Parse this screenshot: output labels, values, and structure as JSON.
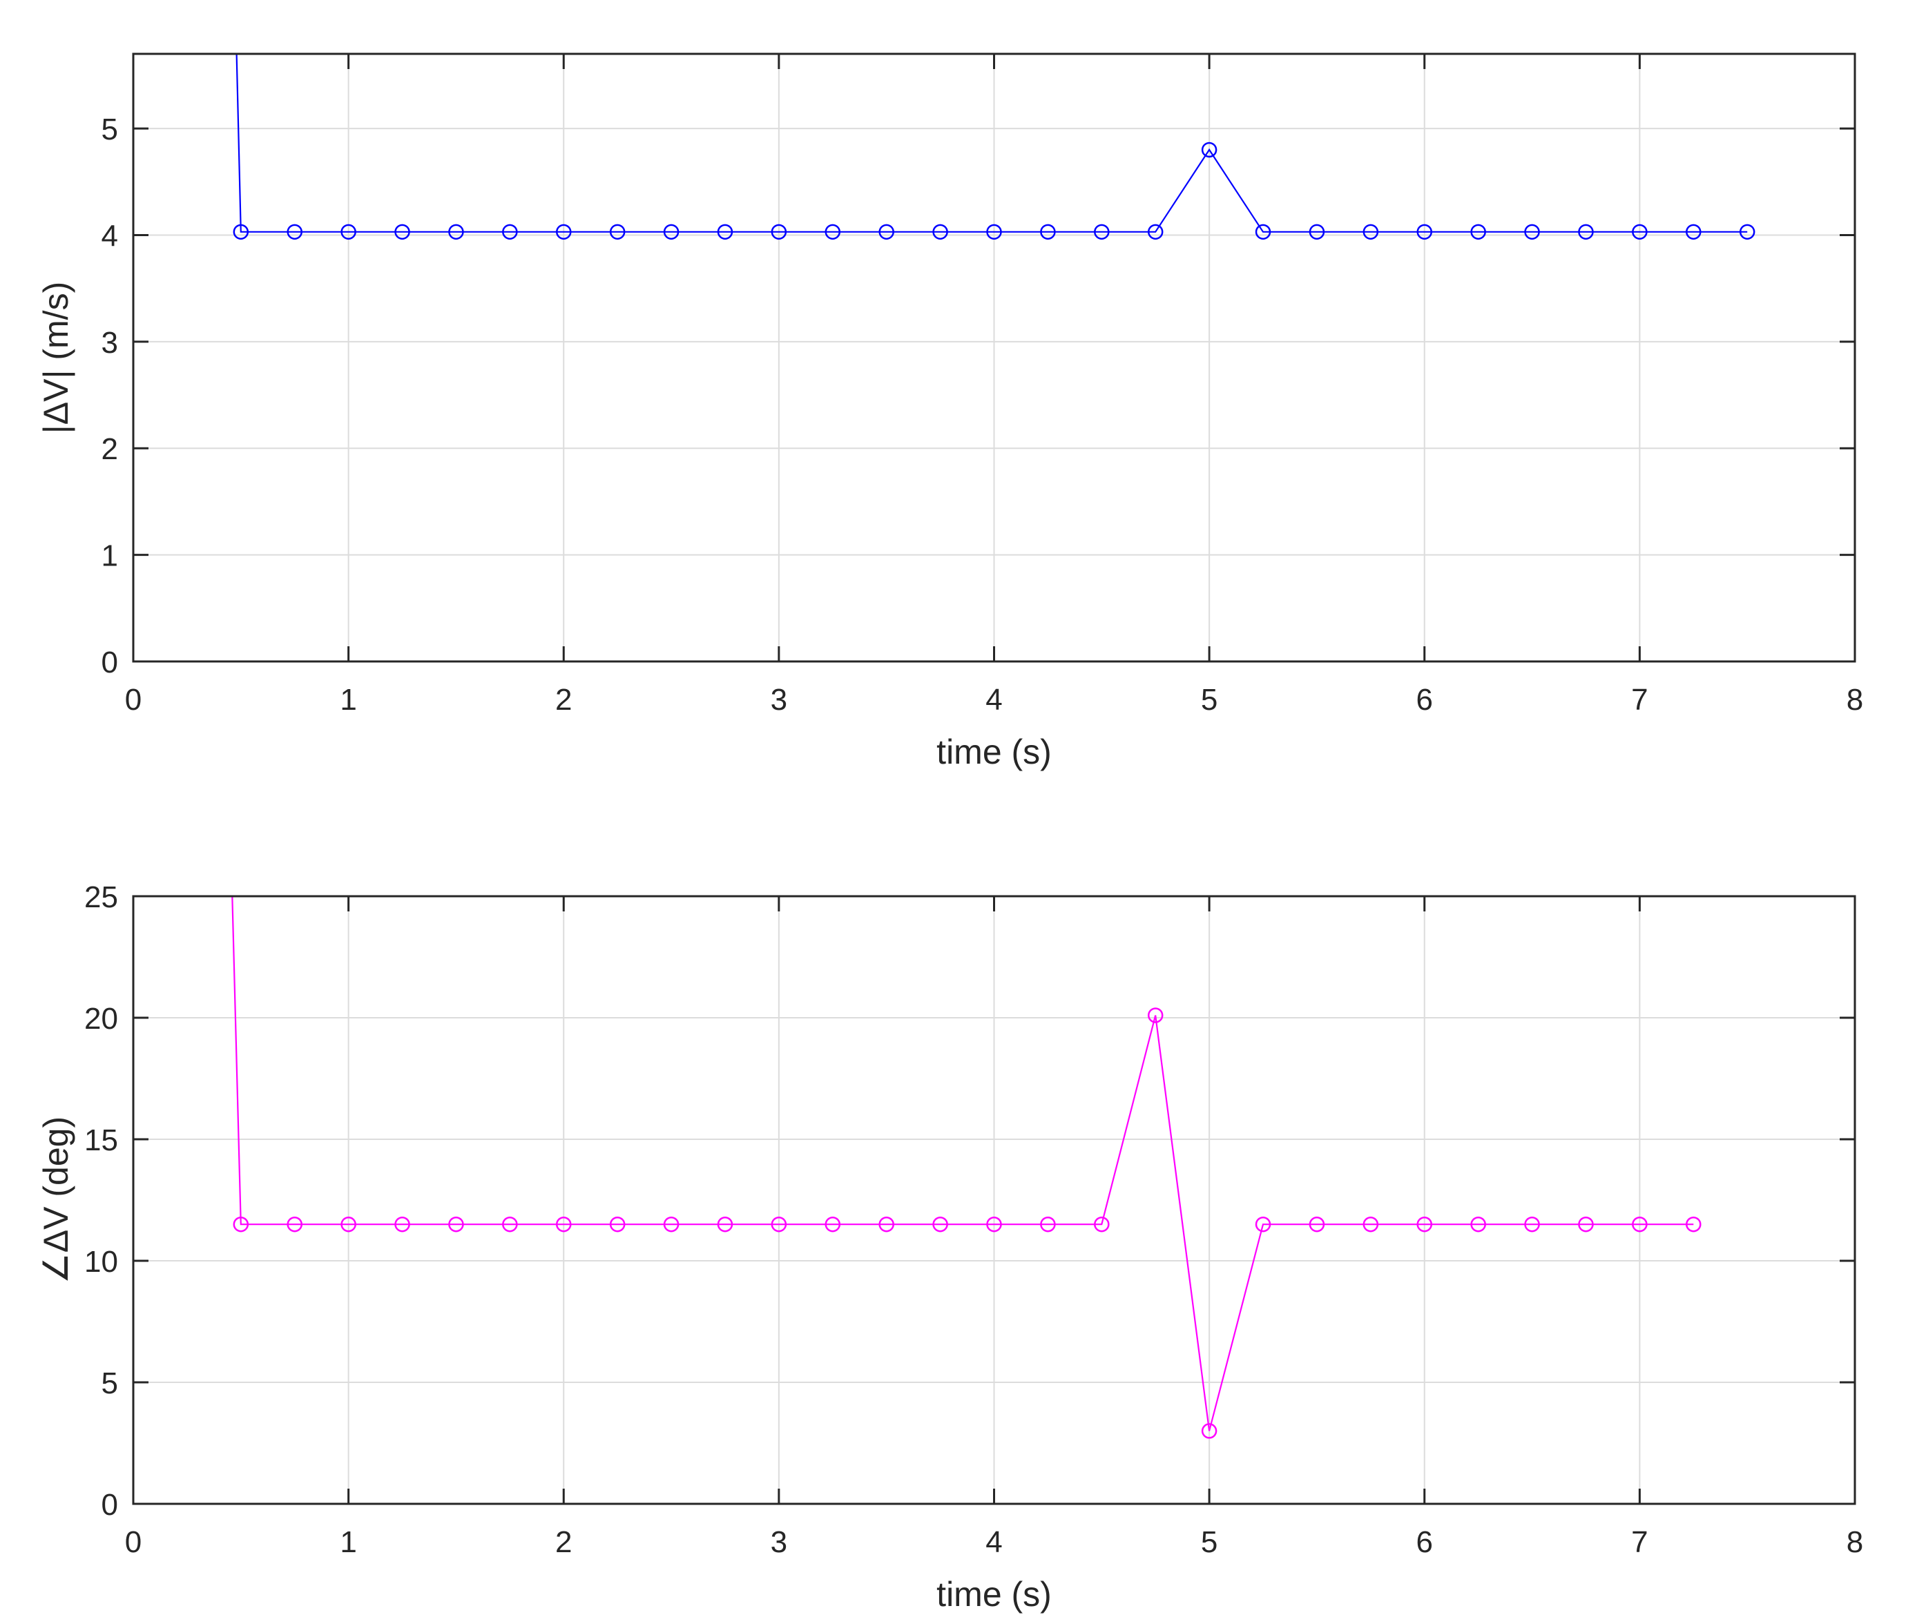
{
  "chart_data": [
    {
      "type": "line",
      "xlabel": "time (s)",
      "ylabel": "|ΔV| (m/s)",
      "xlim": [
        0,
        8
      ],
      "ylim": [
        0,
        5.7
      ],
      "xticks": [
        0,
        1,
        2,
        3,
        4,
        5,
        6,
        7,
        8
      ],
      "yticks": [
        0,
        1,
        2,
        3,
        4,
        5
      ],
      "grid": true,
      "series": [
        {
          "color": "#0000ff",
          "marker": "circle",
          "line_start": {
            "x": 0.48,
            "y": 5.7
          },
          "x": [
            0.5,
            0.75,
            1.0,
            1.25,
            1.5,
            1.75,
            2.0,
            2.25,
            2.5,
            2.75,
            3.0,
            3.25,
            3.5,
            3.75,
            4.0,
            4.25,
            4.5,
            4.75,
            5.0,
            5.25,
            5.5,
            5.75,
            6.0,
            6.25,
            6.5,
            6.75,
            7.0,
            7.25,
            7.5
          ],
          "y": [
            4.03,
            4.03,
            4.03,
            4.03,
            4.03,
            4.03,
            4.03,
            4.03,
            4.03,
            4.03,
            4.03,
            4.03,
            4.03,
            4.03,
            4.03,
            4.03,
            4.03,
            4.03,
            4.8,
            4.03,
            4.03,
            4.03,
            4.03,
            4.03,
            4.03,
            4.03,
            4.03,
            4.03,
            4.03
          ]
        }
      ]
    },
    {
      "type": "line",
      "xlabel": "time (s)",
      "ylabel": "∠ΔV (deg)",
      "xlim": [
        0,
        8
      ],
      "ylim": [
        0,
        25
      ],
      "xticks": [
        0,
        1,
        2,
        3,
        4,
        5,
        6,
        7,
        8
      ],
      "yticks": [
        0,
        5,
        10,
        15,
        20,
        25
      ],
      "grid": true,
      "series": [
        {
          "color": "#ff00ff",
          "marker": "circle",
          "line_start": {
            "x": 0.46,
            "y": 25
          },
          "x": [
            0.5,
            0.75,
            1.0,
            1.25,
            1.5,
            1.75,
            2.0,
            2.25,
            2.5,
            2.75,
            3.0,
            3.25,
            3.5,
            3.75,
            4.0,
            4.25,
            4.5,
            4.75,
            5.0,
            5.25,
            5.5,
            5.75,
            6.0,
            6.25,
            6.5,
            6.75,
            7.0,
            7.25
          ],
          "y": [
            11.5,
            11.5,
            11.5,
            11.5,
            11.5,
            11.5,
            11.5,
            11.5,
            11.5,
            11.5,
            11.5,
            11.5,
            11.5,
            11.5,
            11.5,
            11.5,
            11.5,
            20.1,
            3.0,
            11.5,
            11.5,
            11.5,
            11.5,
            11.5,
            11.5,
            11.5,
            11.5,
            11.5
          ]
        }
      ]
    }
  ]
}
